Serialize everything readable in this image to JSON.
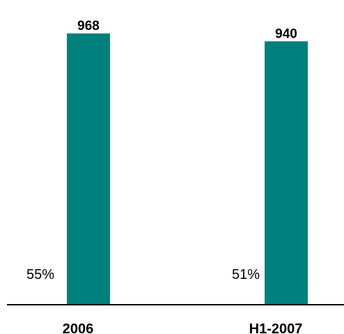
{
  "chart_data": {
    "type": "bar",
    "categories": [
      "2006",
      "H1-2007"
    ],
    "values": [
      968,
      940
    ],
    "annotations": [
      "55%",
      "51%"
    ],
    "title": "",
    "xlabel": "",
    "ylabel": "",
    "ylim": [
      0,
      968
    ],
    "grid": false,
    "colors": {
      "bar": "#00807c",
      "axis": "#000000"
    }
  }
}
